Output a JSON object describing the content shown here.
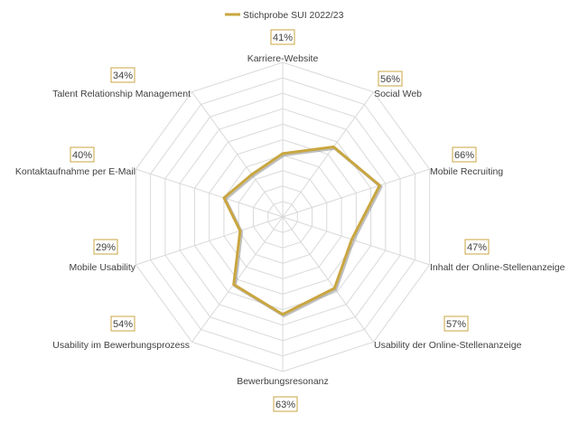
{
  "chart_data": {
    "type": "radar",
    "categories": [
      "Karriere-Website",
      "Social Web",
      "Mobile Recruiting",
      "Inhalt der Online-Stellenanzeige",
      "Usability der Online-Stellenanzeige",
      "Bewerbungsresonanz",
      "Usability im Bewerbungsprozess",
      "Mobile Usability",
      "Kontaktaufnahme per E-Mail",
      "Talent Relationship Management"
    ],
    "value_labels": [
      "41%",
      "56%",
      "66%",
      "47%",
      "57%",
      "63%",
      "54%",
      "29%",
      "40%",
      "34%"
    ],
    "series": [
      {
        "name": "Stichprobe SUI 2022/23",
        "values": [
          41,
          56,
          66,
          47,
          57,
          63,
          54,
          29,
          40,
          34
        ],
        "color": "#C9A640"
      }
    ],
    "ylim": [
      0,
      100
    ],
    "grid": true,
    "legend_position": "top"
  },
  "colors": {
    "series": "#C9A640",
    "series_shadow": "#8c8c8c",
    "grid": "#d9d9d9",
    "label_box_border": "#C9A640"
  }
}
